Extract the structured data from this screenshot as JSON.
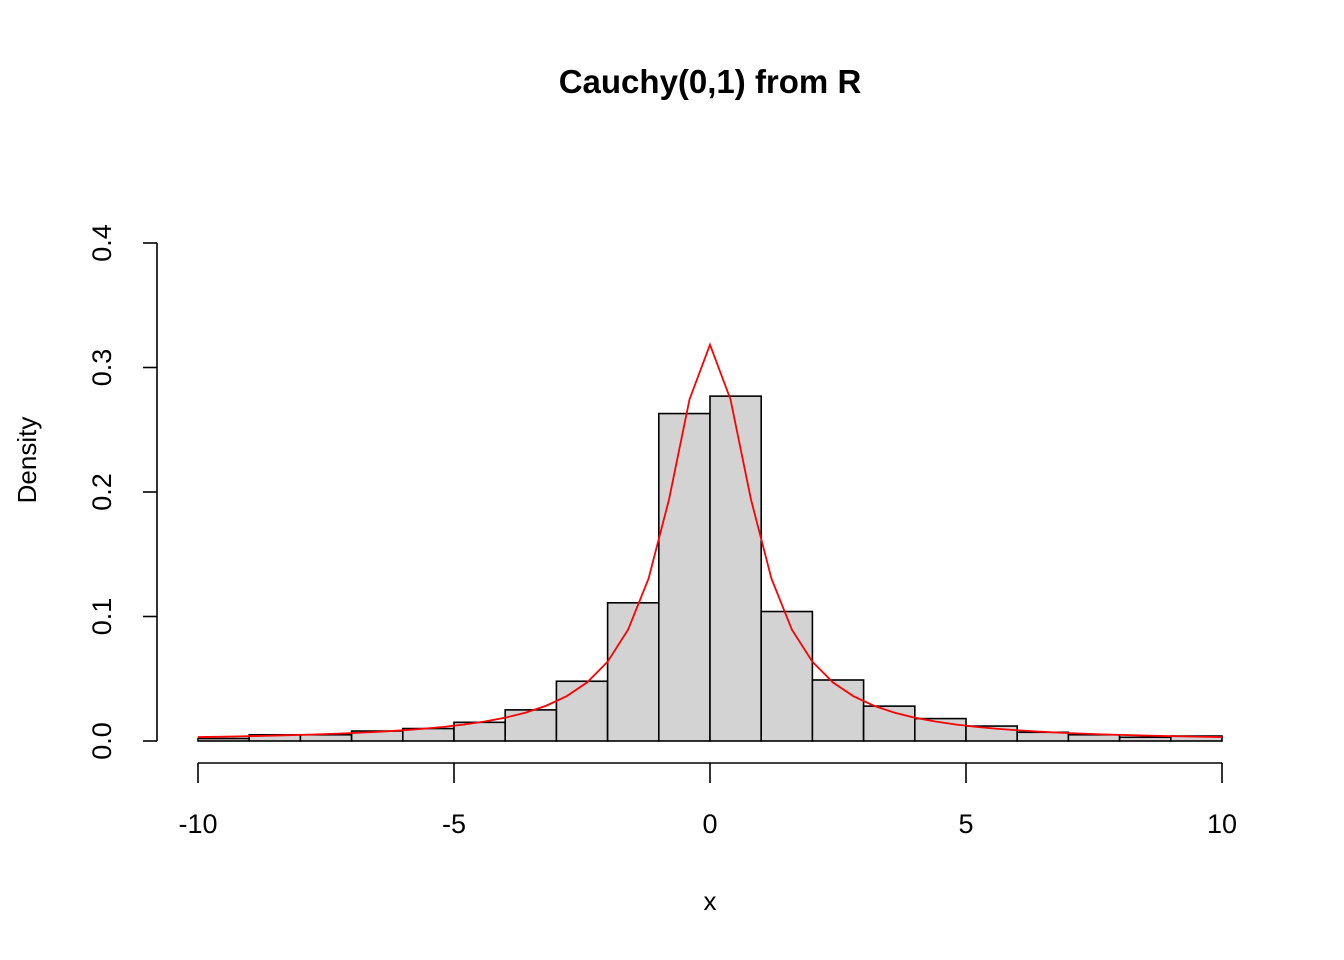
{
  "chart_data": {
    "type": "bar",
    "title": "Cauchy(0,1) from R",
    "xlabel": "x",
    "ylabel": "Density",
    "xlim": [
      -10,
      10
    ],
    "ylim": [
      0,
      0.4
    ],
    "x_ticks": [
      -10,
      -5,
      0,
      5,
      10
    ],
    "x_tick_labels": [
      "-10",
      "-5",
      "0",
      "5",
      "10"
    ],
    "y_ticks": [
      0,
      0.1,
      0.2,
      0.3,
      0.4
    ],
    "y_tick_labels": [
      "0.0",
      "0.1",
      "0.2",
      "0.3",
      "0.4"
    ],
    "grid": false,
    "colors": {
      "bar_fill": "#d3d3d3",
      "bar_border": "#000000",
      "curve": "#ff0000"
    },
    "histogram": {
      "bin_edges": [
        -10,
        -9,
        -8,
        -7,
        -6,
        -5,
        -4,
        -3,
        -2,
        -1,
        0,
        1,
        2,
        3,
        4,
        5,
        6,
        7,
        8,
        9,
        10
      ],
      "density": [
        0.002,
        0.005,
        0.005,
        0.008,
        0.01,
        0.015,
        0.025,
        0.048,
        0.111,
        0.263,
        0.277,
        0.104,
        0.049,
        0.028,
        0.018,
        0.012,
        0.007,
        0.005,
        0.003,
        0.004
      ]
    },
    "curve": {
      "name": "Cauchy(0,1) density",
      "x_from": -10,
      "x_to": 10,
      "points": 51
    }
  }
}
